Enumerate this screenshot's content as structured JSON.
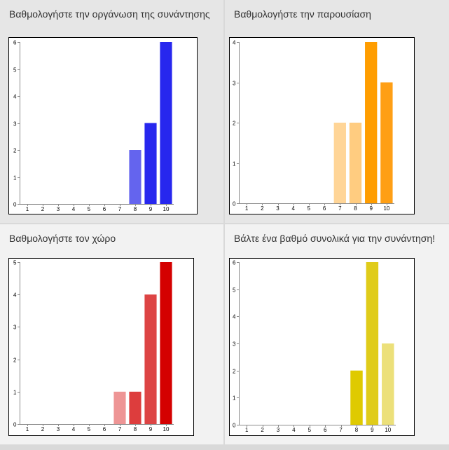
{
  "chart_data": [
    {
      "type": "bar",
      "title": "Βαθμολογήστε την οργάνωση της συνάντησης",
      "categories": [
        "1",
        "2",
        "3",
        "4",
        "5",
        "6",
        "7",
        "8",
        "9",
        "10"
      ],
      "values": [
        0,
        0,
        0,
        0,
        0,
        0,
        0,
        2,
        3,
        6
      ],
      "ylim": [
        0,
        6
      ],
      "yticks": [
        "0",
        "1",
        "2",
        "3",
        "4",
        "5",
        "6"
      ],
      "colors": [
        "#2b2bf0",
        "#2b2bf0",
        "#2b2bf0",
        "#2b2bf0",
        "#2b2bf0",
        "#2b2bf0",
        "#2b2bf0",
        "#6464ee",
        "#2727ee",
        "#2727ee"
      ],
      "grid": false
    },
    {
      "type": "bar",
      "title": "Βαθμολογήστε την παρουσίαση",
      "categories": [
        "1",
        "2",
        "3",
        "4",
        "5",
        "6",
        "7",
        "8",
        "9",
        "10"
      ],
      "values": [
        0,
        0,
        0,
        0,
        0,
        0,
        2,
        2,
        4,
        3
      ],
      "ylim": [
        0,
        4
      ],
      "yticks": [
        "0",
        "1",
        "2",
        "3",
        "4"
      ],
      "colors": [
        "#ff9f0a",
        "#ff9f0a",
        "#ff9f0a",
        "#ff9f0a",
        "#ff9f0a",
        "#ff9f0a",
        "#ffd597",
        "#ffcc80",
        "#ff9d00",
        "#ff9f15"
      ],
      "grid": false
    },
    {
      "type": "bar",
      "title": "Βαθμολογήστε τον χώρο",
      "categories": [
        "1",
        "2",
        "3",
        "4",
        "5",
        "6",
        "7",
        "8",
        "9",
        "10"
      ],
      "values": [
        0,
        0,
        0,
        0,
        0,
        0,
        1,
        1,
        4,
        5
      ],
      "ylim": [
        0,
        5
      ],
      "yticks": [
        "0",
        "1",
        "2",
        "3",
        "4",
        "5"
      ],
      "colors": [
        "#d40000",
        "#d40000",
        "#d40000",
        "#d40000",
        "#d40000",
        "#d40000",
        "#ee9595",
        "#dd3d3d",
        "#dd4444",
        "#d40000"
      ],
      "grid": false
    },
    {
      "type": "bar",
      "title": "Βάλτε ένα βαθμό συνολικά για την συνάντηση!",
      "categories": [
        "1",
        "2",
        "3",
        "4",
        "5",
        "6",
        "7",
        "8",
        "9",
        "10"
      ],
      "values": [
        0,
        0,
        0,
        0,
        0,
        0,
        0,
        2,
        6,
        3
      ],
      "ylim": [
        0,
        6
      ],
      "yticks": [
        "0",
        "1",
        "2",
        "3",
        "4",
        "5",
        "6"
      ],
      "colors": [
        "#e0cc1a",
        "#e0cc1a",
        "#e0cc1a",
        "#e0cc1a",
        "#e0cc1a",
        "#e0cc1a",
        "#e0cc1a",
        "#dfca00",
        "#e0cc1a",
        "#ece07a"
      ],
      "grid": false
    }
  ]
}
